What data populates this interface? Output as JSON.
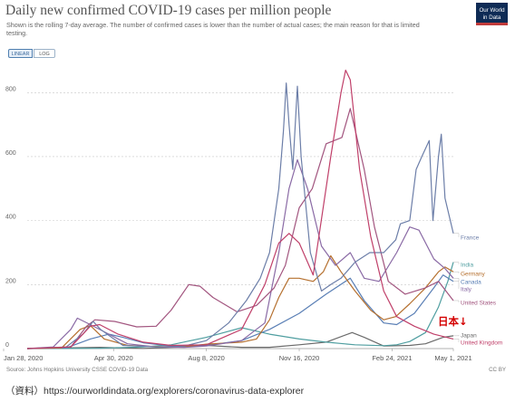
{
  "header": {
    "title": "Daily new confirmed COVID-19 cases per million people",
    "subtitle": "Shown is the rolling 7-day average. The number of confirmed cases is lower than the number of actual cases; the main reason for that is limited testing.",
    "logo_line1": "Our World",
    "logo_line2": "in Data"
  },
  "controls": {
    "linear_label": "LINEAR",
    "log_label": "LOG"
  },
  "annotation": {
    "japan_marker": "日本↓"
  },
  "footer": {
    "source": "Source: Johns Hopkins University CSSE COVID-19 Data",
    "license": "CC BY",
    "note": "（資料）https://ourworldindata.org/explorers/coronavirus-data-explorer"
  },
  "colors": {
    "France": "#6c7ea8",
    "India": "#4f9ea0",
    "Germany": "#b5702f",
    "Canada": "#5a7fb5",
    "Italy": "#8a6aa5",
    "United States": "#a2557f",
    "Japan": "#6a6a6a",
    "United Kingdom": "#c0406a",
    "annotation": "#d40000"
  },
  "chart_data": {
    "type": "line",
    "title": "Daily new confirmed COVID-19 cases per million people",
    "x_tick_labels": [
      "Jan 28, 2020",
      "Apr 30, 2020",
      "Aug 8, 2020",
      "Nov 16, 2020",
      "Feb 24, 2021",
      "May 1, 2021"
    ],
    "xlim": [
      "2020-01-28",
      "2021-05-01"
    ],
    "y_ticks": [
      0,
      200,
      400,
      600,
      800
    ],
    "ylim": [
      0,
      880
    ],
    "grid": true,
    "legend": "right-end labels",
    "series": [
      {
        "name": "France",
        "points": [
          [
            "2020-01-28",
            0
          ],
          [
            "2020-03-10",
            5
          ],
          [
            "2020-03-28",
            45
          ],
          [
            "2020-04-08",
            85
          ],
          [
            "2020-04-16",
            60
          ],
          [
            "2020-05-10",
            10
          ],
          [
            "2020-06-15",
            5
          ],
          [
            "2020-07-15",
            8
          ],
          [
            "2020-08-08",
            25
          ],
          [
            "2020-09-01",
            80
          ],
          [
            "2020-09-20",
            150
          ],
          [
            "2020-10-05",
            220
          ],
          [
            "2020-10-15",
            300
          ],
          [
            "2020-10-25",
            500
          ],
          [
            "2020-10-30",
            680
          ],
          [
            "2020-11-02",
            830
          ],
          [
            "2020-11-05",
            700
          ],
          [
            "2020-11-09",
            560
          ],
          [
            "2020-11-14",
            820
          ],
          [
            "2020-11-18",
            600
          ],
          [
            "2020-11-28",
            300
          ],
          [
            "2020-12-10",
            180
          ],
          [
            "2020-12-20",
            200
          ],
          [
            "2020-12-31",
            220
          ],
          [
            "2021-01-15",
            270
          ],
          [
            "2021-01-31",
            300
          ],
          [
            "2021-02-15",
            300
          ],
          [
            "2021-02-28",
            340
          ],
          [
            "2021-03-05",
            390
          ],
          [
            "2021-03-15",
            400
          ],
          [
            "2021-03-22",
            560
          ],
          [
            "2021-03-28",
            600
          ],
          [
            "2021-04-05",
            650
          ],
          [
            "2021-04-09",
            400
          ],
          [
            "2021-04-15",
            600
          ],
          [
            "2021-04-18",
            670
          ],
          [
            "2021-04-22",
            470
          ],
          [
            "2021-05-01",
            360
          ]
        ]
      },
      {
        "name": "India",
        "points": [
          [
            "2020-01-28",
            0
          ],
          [
            "2020-04-15",
            1
          ],
          [
            "2020-06-01",
            5
          ],
          [
            "2020-07-01",
            12
          ],
          [
            "2020-08-08",
            35
          ],
          [
            "2020-09-15",
            65
          ],
          [
            "2020-10-15",
            45
          ],
          [
            "2020-11-16",
            30
          ],
          [
            "2020-12-15",
            20
          ],
          [
            "2021-01-15",
            12
          ],
          [
            "2021-02-15",
            9
          ],
          [
            "2021-03-01",
            12
          ],
          [
            "2021-03-15",
            22
          ],
          [
            "2021-04-01",
            50
          ],
          [
            "2021-04-15",
            130
          ],
          [
            "2021-04-25",
            210
          ],
          [
            "2021-05-01",
            270
          ]
        ]
      },
      {
        "name": "Germany",
        "points": [
          [
            "2020-01-28",
            0
          ],
          [
            "2020-03-05",
            2
          ],
          [
            "2020-03-25",
            60
          ],
          [
            "2020-04-05",
            72
          ],
          [
            "2020-04-20",
            30
          ],
          [
            "2020-05-15",
            10
          ],
          [
            "2020-06-15",
            6
          ],
          [
            "2020-07-15",
            6
          ],
          [
            "2020-08-08",
            14
          ],
          [
            "2020-09-15",
            20
          ],
          [
            "2020-10-01",
            30
          ],
          [
            "2020-10-15",
            90
          ],
          [
            "2020-10-25",
            160
          ],
          [
            "2020-11-05",
            220
          ],
          [
            "2020-11-16",
            220
          ],
          [
            "2020-12-01",
            210
          ],
          [
            "2020-12-12",
            240
          ],
          [
            "2020-12-20",
            290
          ],
          [
            "2020-12-31",
            240
          ],
          [
            "2021-01-15",
            180
          ],
          [
            "2021-02-01",
            120
          ],
          [
            "2021-02-15",
            90
          ],
          [
            "2021-02-28",
            100
          ],
          [
            "2021-03-15",
            140
          ],
          [
            "2021-04-01",
            190
          ],
          [
            "2021-04-15",
            240
          ],
          [
            "2021-04-22",
            255
          ],
          [
            "2021-05-01",
            240
          ]
        ]
      },
      {
        "name": "Canada",
        "points": [
          [
            "2020-01-28",
            0
          ],
          [
            "2020-03-10",
            2
          ],
          [
            "2020-04-05",
            30
          ],
          [
            "2020-04-25",
            45
          ],
          [
            "2020-05-10",
            35
          ],
          [
            "2020-06-01",
            18
          ],
          [
            "2020-07-01",
            8
          ],
          [
            "2020-08-08",
            10
          ],
          [
            "2020-09-15",
            25
          ],
          [
            "2020-10-15",
            60
          ],
          [
            "2020-11-16",
            110
          ],
          [
            "2020-12-15",
            170
          ],
          [
            "2021-01-10",
            220
          ],
          [
            "2021-01-25",
            150
          ],
          [
            "2021-02-15",
            80
          ],
          [
            "2021-03-01",
            75
          ],
          [
            "2021-03-20",
            110
          ],
          [
            "2021-04-10",
            190
          ],
          [
            "2021-04-20",
            230
          ],
          [
            "2021-05-01",
            210
          ]
        ]
      },
      {
        "name": "Italy",
        "points": [
          [
            "2020-01-28",
            0
          ],
          [
            "2020-02-25",
            5
          ],
          [
            "2020-03-15",
            60
          ],
          [
            "2020-03-22",
            95
          ],
          [
            "2020-04-05",
            75
          ],
          [
            "2020-04-25",
            45
          ],
          [
            "2020-05-15",
            15
          ],
          [
            "2020-06-15",
            5
          ],
          [
            "2020-07-15",
            4
          ],
          [
            "2020-08-08",
            8
          ],
          [
            "2020-09-15",
            25
          ],
          [
            "2020-10-10",
            80
          ],
          [
            "2020-10-25",
            300
          ],
          [
            "2020-11-05",
            500
          ],
          [
            "2020-11-14",
            590
          ],
          [
            "2020-11-25",
            500
          ],
          [
            "2020-12-10",
            320
          ],
          [
            "2020-12-25",
            260
          ],
          [
            "2021-01-10",
            300
          ],
          [
            "2021-01-25",
            220
          ],
          [
            "2021-02-10",
            210
          ],
          [
            "2021-03-01",
            300
          ],
          [
            "2021-03-15",
            380
          ],
          [
            "2021-03-25",
            370
          ],
          [
            "2021-04-10",
            280
          ],
          [
            "2021-04-22",
            250
          ],
          [
            "2021-05-01",
            220
          ]
        ]
      },
      {
        "name": "United States",
        "points": [
          [
            "2020-01-28",
            0
          ],
          [
            "2020-03-15",
            5
          ],
          [
            "2020-04-01",
            70
          ],
          [
            "2020-04-10",
            90
          ],
          [
            "2020-05-01",
            85
          ],
          [
            "2020-05-25",
            68
          ],
          [
            "2020-06-15",
            70
          ],
          [
            "2020-07-01",
            120
          ],
          [
            "2020-07-20",
            200
          ],
          [
            "2020-08-01",
            195
          ],
          [
            "2020-08-15",
            160
          ],
          [
            "2020-09-10",
            115
          ],
          [
            "2020-10-01",
            135
          ],
          [
            "2020-10-20",
            190
          ],
          [
            "2020-11-01",
            260
          ],
          [
            "2020-11-16",
            440
          ],
          [
            "2020-11-30",
            500
          ],
          [
            "2020-12-15",
            640
          ],
          [
            "2021-01-01",
            660
          ],
          [
            "2021-01-10",
            750
          ],
          [
            "2021-01-25",
            560
          ],
          [
            "2021-02-05",
            380
          ],
          [
            "2021-02-20",
            210
          ],
          [
            "2021-03-10",
            170
          ],
          [
            "2021-04-01",
            190
          ],
          [
            "2021-04-15",
            210
          ],
          [
            "2021-05-01",
            150
          ]
        ]
      },
      {
        "name": "Japan",
        "points": [
          [
            "2020-01-28",
            0
          ],
          [
            "2020-04-15",
            4
          ],
          [
            "2020-06-01",
            0.5
          ],
          [
            "2020-07-15",
            5
          ],
          [
            "2020-08-08",
            10
          ],
          [
            "2020-09-15",
            4
          ],
          [
            "2020-10-15",
            4
          ],
          [
            "2020-11-16",
            12
          ],
          [
            "2020-12-15",
            20
          ],
          [
            "2021-01-12",
            50
          ],
          [
            "2021-01-25",
            35
          ],
          [
            "2021-02-15",
            8
          ],
          [
            "2021-03-15",
            10
          ],
          [
            "2021-04-01",
            15
          ],
          [
            "2021-04-20",
            35
          ],
          [
            "2021-05-01",
            40
          ]
        ]
      },
      {
        "name": "United Kingdom",
        "points": [
          [
            "2020-01-28",
            0
          ],
          [
            "2020-03-15",
            5
          ],
          [
            "2020-04-05",
            70
          ],
          [
            "2020-04-15",
            75
          ],
          [
            "2020-05-05",
            45
          ],
          [
            "2020-06-01",
            20
          ],
          [
            "2020-07-01",
            10
          ],
          [
            "2020-08-08",
            12
          ],
          [
            "2020-09-15",
            60
          ],
          [
            "2020-10-10",
            200
          ],
          [
            "2020-10-25",
            330
          ],
          [
            "2020-11-05",
            360
          ],
          [
            "2020-11-16",
            330
          ],
          [
            "2020-12-01",
            230
          ],
          [
            "2020-12-20",
            600
          ],
          [
            "2020-12-31",
            800
          ],
          [
            "2021-01-05",
            870
          ],
          [
            "2021-01-10",
            840
          ],
          [
            "2021-01-20",
            560
          ],
          [
            "2021-02-01",
            350
          ],
          [
            "2021-02-15",
            180
          ],
          [
            "2021-03-01",
            100
          ],
          [
            "2021-03-20",
            70
          ],
          [
            "2021-04-10",
            45
          ],
          [
            "2021-05-01",
            30
          ]
        ]
      }
    ]
  }
}
